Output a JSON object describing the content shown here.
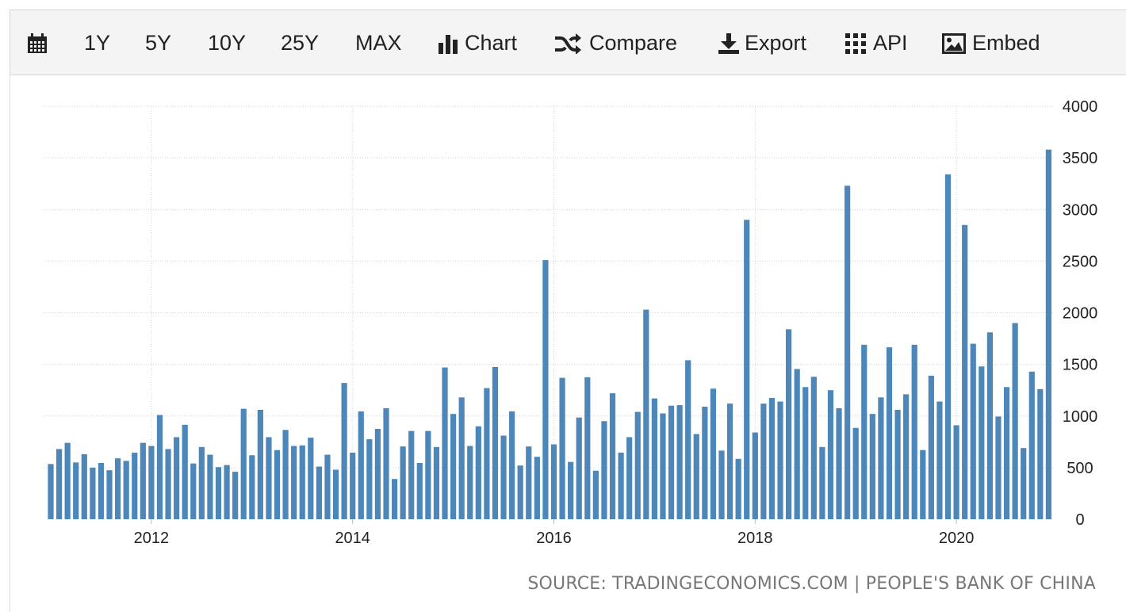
{
  "toolbar": {
    "items": [
      {
        "name": "calendar",
        "label": ""
      },
      {
        "name": "1y",
        "label": "1Y"
      },
      {
        "name": "5y",
        "label": "5Y"
      },
      {
        "name": "10y",
        "label": "10Y"
      },
      {
        "name": "25y",
        "label": "25Y"
      },
      {
        "name": "max",
        "label": "MAX"
      },
      {
        "name": "chart",
        "label": "Chart"
      },
      {
        "name": "compare",
        "label": "Compare"
      },
      {
        "name": "export",
        "label": "Export"
      },
      {
        "name": "api",
        "label": "API"
      },
      {
        "name": "embed",
        "label": "Embed"
      }
    ],
    "icons": {
      "calendar": "calendar-icon",
      "chart": "bar-chart-icon",
      "compare": "shuffle-icon",
      "export": "download-icon",
      "api": "grid-icon",
      "embed": "image-icon"
    }
  },
  "source": "SOURCE: TRADINGECONOMICS.COM | PEOPLE'S BANK OF CHINA",
  "chart_data": {
    "type": "bar",
    "color": "#4d87b9",
    "x_tick_labels": [
      "2012",
      "2014",
      "2016",
      "2018",
      "2020"
    ],
    "x_tick_dates": [
      "2012-01",
      "2014-01",
      "2016-01",
      "2018-01",
      "2020-01"
    ],
    "y_ticks": [
      0,
      500,
      1000,
      1500,
      2000,
      2500,
      3000,
      3500,
      4000
    ],
    "ylim": [
      0,
      4000
    ],
    "grid": true,
    "y_axis_position": "right",
    "categories": [
      "2011-01",
      "2011-02",
      "2011-03",
      "2011-04",
      "2011-05",
      "2011-06",
      "2011-07",
      "2011-08",
      "2011-09",
      "2011-10",
      "2011-11",
      "2011-12",
      "2012-01",
      "2012-02",
      "2012-03",
      "2012-04",
      "2012-05",
      "2012-06",
      "2012-07",
      "2012-08",
      "2012-09",
      "2012-10",
      "2012-11",
      "2012-12",
      "2013-01",
      "2013-02",
      "2013-03",
      "2013-04",
      "2013-05",
      "2013-06",
      "2013-07",
      "2013-08",
      "2013-09",
      "2013-10",
      "2013-11",
      "2013-12",
      "2014-01",
      "2014-02",
      "2014-03",
      "2014-04",
      "2014-05",
      "2014-06",
      "2014-07",
      "2014-08",
      "2014-09",
      "2014-10",
      "2014-11",
      "2014-12",
      "2015-01",
      "2015-02",
      "2015-03",
      "2015-04",
      "2015-05",
      "2015-06",
      "2015-07",
      "2015-08",
      "2015-09",
      "2015-10",
      "2015-11",
      "2015-12",
      "2016-01",
      "2016-02",
      "2016-03",
      "2016-04",
      "2016-05",
      "2016-06",
      "2016-07",
      "2016-08",
      "2016-09",
      "2016-10",
      "2016-11",
      "2016-12",
      "2017-01",
      "2017-02",
      "2017-03",
      "2017-04",
      "2017-05",
      "2017-06",
      "2017-07",
      "2017-08",
      "2017-09",
      "2017-10",
      "2017-11",
      "2017-12",
      "2018-01",
      "2018-02",
      "2018-03",
      "2018-04",
      "2018-05",
      "2018-06",
      "2018-07",
      "2018-08",
      "2018-09",
      "2018-10",
      "2018-11",
      "2018-12",
      "2019-01",
      "2019-02",
      "2019-03",
      "2019-04",
      "2019-05",
      "2019-06",
      "2019-07",
      "2019-08",
      "2019-09",
      "2019-10",
      "2019-11",
      "2019-12",
      "2020-01",
      "2020-02",
      "2020-03",
      "2020-04",
      "2020-05",
      "2020-06",
      "2020-07",
      "2020-08",
      "2020-09",
      "2020-10",
      "2020-11",
      "2020-12",
      "2021-01"
    ],
    "values": [
      535,
      680,
      740,
      550,
      630,
      500,
      545,
      475,
      590,
      565,
      645,
      740,
      710,
      1010,
      680,
      795,
      915,
      540,
      700,
      625,
      505,
      525,
      460,
      1070,
      620,
      1060,
      795,
      670,
      865,
      710,
      715,
      790,
      510,
      625,
      480,
      1320,
      645,
      1045,
      775,
      875,
      1075,
      390,
      705,
      855,
      545,
      855,
      700,
      1470,
      1020,
      1180,
      710,
      900,
      1270,
      1475,
      810,
      1045,
      520,
      705,
      605,
      2510,
      725,
      1370,
      555,
      985,
      1375,
      470,
      950,
      1220,
      645,
      795,
      1040,
      2030,
      1170,
      1025,
      1100,
      1105,
      1540,
      825,
      1090,
      1265,
      665,
      1120,
      585,
      2900,
      840,
      1120,
      1175,
      1140,
      1840,
      1455,
      1280,
      1380,
      700,
      1250,
      1075,
      3230,
      885,
      1690,
      1020,
      1180,
      1665,
      1060,
      1210,
      1690,
      670,
      1390,
      1140,
      3340,
      910,
      2850,
      1700,
      1480,
      1810,
      995,
      1280,
      1900,
      690,
      1430,
      1260,
      3580,
      0
    ]
  }
}
